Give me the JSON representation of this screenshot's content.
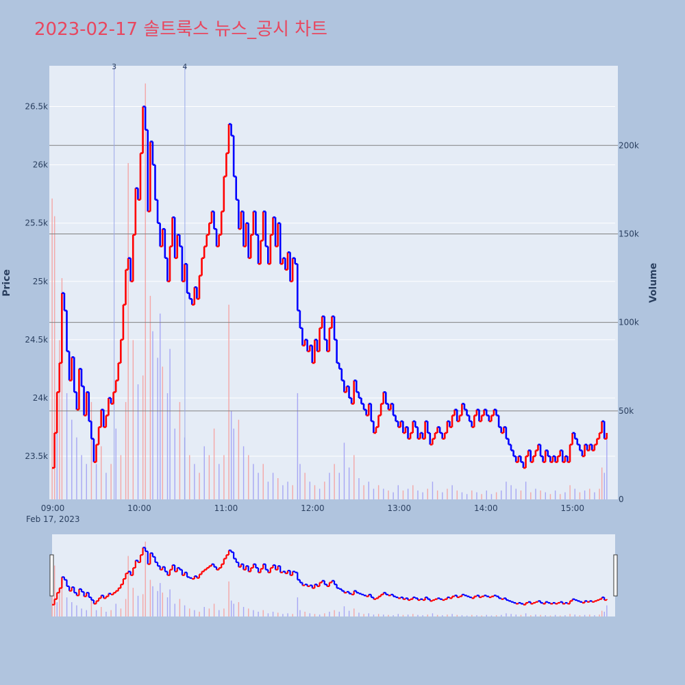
{
  "title": "2023-02-17 솔트룩스 뉴스_공시 차트",
  "colors": {
    "background": "#b0c4de",
    "plot_bg": "#e5ecf6",
    "title": "#e8475f",
    "up": "#ff0000",
    "down": "#0000ff",
    "up_volume": "#f4a6a6",
    "down_volume": "#a6a6f4",
    "grid": "#ffffff",
    "hline": "#808080"
  },
  "chart_data": {
    "type": "candlestick",
    "title": "2023-02-17 솔트룩스 뉴스_공시 차트",
    "xlabel": "",
    "ylabel": "Price",
    "y2label": "Volume",
    "date_label": "Feb 17, 2023",
    "x_ticks": [
      "09:00",
      "10:00",
      "11:00",
      "12:00",
      "13:00",
      "14:00",
      "15:00"
    ],
    "x_range_minutes": [
      0,
      390
    ],
    "y_ticks": [
      "23.5k",
      "24k",
      "24.5k",
      "25k",
      "25.5k",
      "26k",
      "26.5k"
    ],
    "y_tick_values": [
      23500,
      24000,
      24500,
      25000,
      25500,
      26000,
      26500
    ],
    "ylim": [
      23130,
      26850
    ],
    "y2_ticks": [
      "0",
      "50k",
      "100k",
      "150k",
      "200k"
    ],
    "y2_tick_values": [
      0,
      50000,
      100000,
      150000,
      200000
    ],
    "y2lim": [
      0,
      245000
    ],
    "horizontal_lines_volume": [
      50000,
      100000,
      150000,
      200000
    ],
    "news_markers": [
      {
        "label": "3",
        "time_min": 43
      },
      {
        "label": "4",
        "time_min": 92
      }
    ],
    "price_path": [
      [
        0,
        23400
      ],
      [
        1,
        23700
      ],
      [
        2,
        24050
      ],
      [
        3,
        24300
      ],
      [
        4,
        24900
      ],
      [
        5,
        24750
      ],
      [
        6,
        24400
      ],
      [
        7,
        24150
      ],
      [
        8,
        24350
      ],
      [
        9,
        24050
      ],
      [
        10,
        23900
      ],
      [
        11,
        24250
      ],
      [
        12,
        24100
      ],
      [
        13,
        23850
      ],
      [
        14,
        24050
      ],
      [
        15,
        23800
      ],
      [
        16,
        23650
      ],
      [
        17,
        23450
      ],
      [
        18,
        23600
      ],
      [
        19,
        23750
      ],
      [
        20,
        23900
      ],
      [
        21,
        23750
      ],
      [
        22,
        23850
      ],
      [
        23,
        24000
      ],
      [
        24,
        23950
      ],
      [
        25,
        24050
      ],
      [
        26,
        24150
      ],
      [
        27,
        24300
      ],
      [
        28,
        24500
      ],
      [
        29,
        24800
      ],
      [
        30,
        25100
      ],
      [
        31,
        25200
      ],
      [
        32,
        25000
      ],
      [
        33,
        25400
      ],
      [
        34,
        25800
      ],
      [
        35,
        25700
      ],
      [
        36,
        26100
      ],
      [
        37,
        26500
      ],
      [
        38,
        26300
      ],
      [
        39,
        25600
      ],
      [
        40,
        26200
      ],
      [
        41,
        26000
      ],
      [
        42,
        25700
      ],
      [
        43,
        25500
      ],
      [
        44,
        25300
      ],
      [
        45,
        25450
      ],
      [
        46,
        25200
      ],
      [
        47,
        25000
      ],
      [
        48,
        25300
      ],
      [
        49,
        25550
      ],
      [
        50,
        25200
      ],
      [
        51,
        25400
      ],
      [
        52,
        25300
      ],
      [
        53,
        25000
      ],
      [
        54,
        25150
      ],
      [
        55,
        24900
      ],
      [
        56,
        24850
      ],
      [
        57,
        24800
      ],
      [
        58,
        24950
      ],
      [
        59,
        24850
      ],
      [
        60,
        25050
      ],
      [
        61,
        25200
      ],
      [
        62,
        25300
      ],
      [
        63,
        25400
      ],
      [
        64,
        25500
      ],
      [
        65,
        25600
      ],
      [
        66,
        25450
      ],
      [
        67,
        25300
      ],
      [
        68,
        25400
      ],
      [
        69,
        25600
      ],
      [
        70,
        25900
      ],
      [
        71,
        26100
      ],
      [
        72,
        26350
      ],
      [
        73,
        26250
      ],
      [
        74,
        25900
      ],
      [
        75,
        25700
      ],
      [
        76,
        25450
      ],
      [
        77,
        25600
      ],
      [
        78,
        25300
      ],
      [
        79,
        25500
      ],
      [
        80,
        25200
      ],
      [
        81,
        25400
      ],
      [
        82,
        25600
      ],
      [
        83,
        25400
      ],
      [
        84,
        25150
      ],
      [
        85,
        25350
      ],
      [
        86,
        25600
      ],
      [
        87,
        25300
      ],
      [
        88,
        25150
      ],
      [
        89,
        25400
      ],
      [
        90,
        25550
      ],
      [
        91,
        25300
      ],
      [
        92,
        25500
      ],
      [
        93,
        25150
      ],
      [
        94,
        25200
      ],
      [
        95,
        25100
      ],
      [
        96,
        25250
      ],
      [
        97,
        25000
      ],
      [
        98,
        25200
      ],
      [
        99,
        25150
      ],
      [
        100,
        24750
      ],
      [
        101,
        24600
      ],
      [
        102,
        24450
      ],
      [
        103,
        24500
      ],
      [
        104,
        24400
      ],
      [
        105,
        24450
      ],
      [
        106,
        24300
      ],
      [
        107,
        24500
      ],
      [
        108,
        24400
      ],
      [
        109,
        24600
      ],
      [
        110,
        24700
      ],
      [
        111,
        24500
      ],
      [
        112,
        24400
      ],
      [
        113,
        24600
      ],
      [
        114,
        24700
      ],
      [
        115,
        24500
      ],
      [
        116,
        24300
      ],
      [
        117,
        24250
      ],
      [
        118,
        24150
      ],
      [
        119,
        24050
      ],
      [
        120,
        24100
      ],
      [
        121,
        24000
      ],
      [
        122,
        23950
      ],
      [
        123,
        24150
      ],
      [
        124,
        24050
      ],
      [
        125,
        24000
      ],
      [
        126,
        23950
      ],
      [
        127,
        23900
      ],
      [
        128,
        23850
      ],
      [
        129,
        23950
      ],
      [
        130,
        23800
      ],
      [
        131,
        23700
      ],
      [
        132,
        23750
      ],
      [
        133,
        23850
      ],
      [
        134,
        23950
      ],
      [
        135,
        24050
      ],
      [
        136,
        23950
      ],
      [
        137,
        23900
      ],
      [
        138,
        23950
      ],
      [
        139,
        23850
      ],
      [
        140,
        23800
      ],
      [
        141,
        23750
      ],
      [
        142,
        23800
      ],
      [
        143,
        23700
      ],
      [
        144,
        23750
      ],
      [
        145,
        23650
      ],
      [
        146,
        23700
      ],
      [
        147,
        23800
      ],
      [
        148,
        23750
      ],
      [
        149,
        23650
      ],
      [
        150,
        23700
      ],
      [
        151,
        23650
      ],
      [
        152,
        23800
      ],
      [
        153,
        23700
      ],
      [
        154,
        23600
      ],
      [
        155,
        23650
      ],
      [
        156,
        23700
      ],
      [
        157,
        23750
      ],
      [
        158,
        23700
      ],
      [
        159,
        23650
      ],
      [
        160,
        23700
      ],
      [
        161,
        23800
      ],
      [
        162,
        23750
      ],
      [
        163,
        23850
      ],
      [
        164,
        23900
      ],
      [
        165,
        23800
      ],
      [
        166,
        23850
      ],
      [
        167,
        23950
      ],
      [
        168,
        23900
      ],
      [
        169,
        23850
      ],
      [
        170,
        23800
      ],
      [
        171,
        23750
      ],
      [
        172,
        23850
      ],
      [
        173,
        23900
      ],
      [
        174,
        23800
      ],
      [
        175,
        23850
      ],
      [
        176,
        23900
      ],
      [
        177,
        23850
      ],
      [
        178,
        23800
      ],
      [
        179,
        23850
      ],
      [
        180,
        23900
      ],
      [
        181,
        23850
      ],
      [
        182,
        23750
      ],
      [
        183,
        23700
      ],
      [
        184,
        23750
      ],
      [
        185,
        23650
      ],
      [
        186,
        23600
      ],
      [
        187,
        23550
      ],
      [
        188,
        23500
      ],
      [
        189,
        23450
      ],
      [
        190,
        23500
      ],
      [
        191,
        23450
      ],
      [
        192,
        23400
      ],
      [
        193,
        23500
      ],
      [
        194,
        23550
      ],
      [
        195,
        23450
      ],
      [
        196,
        23500
      ],
      [
        197,
        23550
      ],
      [
        198,
        23600
      ],
      [
        199,
        23500
      ],
      [
        200,
        23450
      ],
      [
        201,
        23550
      ],
      [
        202,
        23500
      ],
      [
        203,
        23450
      ],
      [
        204,
        23500
      ],
      [
        205,
        23450
      ],
      [
        206,
        23500
      ],
      [
        207,
        23550
      ],
      [
        208,
        23450
      ],
      [
        209,
        23500
      ],
      [
        210,
        23450
      ],
      [
        211,
        23600
      ],
      [
        212,
        23700
      ],
      [
        213,
        23650
      ],
      [
        214,
        23600
      ],
      [
        215,
        23550
      ],
      [
        216,
        23500
      ],
      [
        217,
        23600
      ],
      [
        218,
        23550
      ],
      [
        219,
        23600
      ],
      [
        220,
        23550
      ],
      [
        221,
        23600
      ],
      [
        222,
        23650
      ],
      [
        223,
        23700
      ],
      [
        224,
        23800
      ],
      [
        225,
        23650
      ],
      [
        226,
        23700
      ]
    ],
    "price_time_scale": 1.7,
    "volume_bars": [
      [
        0,
        170000,
        "up"
      ],
      [
        1,
        160000,
        "up"
      ],
      [
        2,
        45000,
        "down"
      ],
      [
        3,
        90000,
        "up"
      ],
      [
        4,
        125000,
        "up"
      ],
      [
        6,
        60000,
        "down"
      ],
      [
        8,
        45000,
        "down"
      ],
      [
        10,
        35000,
        "down"
      ],
      [
        12,
        25000,
        "down"
      ],
      [
        14,
        20000,
        "down"
      ],
      [
        16,
        55000,
        "up"
      ],
      [
        18,
        20000,
        "down"
      ],
      [
        20,
        30000,
        "up"
      ],
      [
        22,
        15000,
        "down"
      ],
      [
        24,
        20000,
        "up"
      ],
      [
        26,
        40000,
        "down"
      ],
      [
        28,
        25000,
        "up"
      ],
      [
        30,
        55000,
        "up"
      ],
      [
        31,
        190000,
        "up"
      ],
      [
        33,
        90000,
        "up"
      ],
      [
        35,
        65000,
        "down"
      ],
      [
        37,
        70000,
        "up"
      ],
      [
        38,
        235000,
        "up"
      ],
      [
        40,
        115000,
        "up"
      ],
      [
        41,
        95000,
        "down"
      ],
      [
        43,
        80000,
        "down"
      ],
      [
        44,
        105000,
        "down"
      ],
      [
        45,
        75000,
        "up"
      ],
      [
        47,
        60000,
        "down"
      ],
      [
        48,
        85000,
        "down"
      ],
      [
        50,
        40000,
        "down"
      ],
      [
        52,
        55000,
        "up"
      ],
      [
        54,
        35000,
        "down"
      ],
      [
        56,
        25000,
        "up"
      ],
      [
        58,
        20000,
        "down"
      ],
      [
        60,
        15000,
        "up"
      ],
      [
        62,
        30000,
        "down"
      ],
      [
        64,
        25000,
        "up"
      ],
      [
        66,
        40000,
        "up"
      ],
      [
        68,
        20000,
        "down"
      ],
      [
        70,
        25000,
        "up"
      ],
      [
        72,
        110000,
        "up"
      ],
      [
        73,
        50000,
        "down"
      ],
      [
        74,
        40000,
        "down"
      ],
      [
        76,
        45000,
        "up"
      ],
      [
        78,
        30000,
        "down"
      ],
      [
        80,
        25000,
        "up"
      ],
      [
        82,
        20000,
        "down"
      ],
      [
        84,
        15000,
        "down"
      ],
      [
        86,
        20000,
        "up"
      ],
      [
        88,
        10000,
        "down"
      ],
      [
        90,
        15000,
        "down"
      ],
      [
        92,
        12000,
        "up"
      ],
      [
        94,
        8000,
        "down"
      ],
      [
        96,
        10000,
        "down"
      ],
      [
        98,
        8000,
        "up"
      ],
      [
        100,
        60000,
        "down"
      ],
      [
        101,
        20000,
        "down"
      ],
      [
        103,
        15000,
        "up"
      ],
      [
        105,
        10000,
        "down"
      ],
      [
        107,
        8000,
        "up"
      ],
      [
        109,
        6000,
        "down"
      ],
      [
        111,
        10000,
        "up"
      ],
      [
        113,
        15000,
        "down"
      ],
      [
        115,
        20000,
        "up"
      ],
      [
        117,
        15000,
        "down"
      ],
      [
        119,
        32000,
        "down"
      ],
      [
        121,
        18000,
        "down"
      ],
      [
        123,
        25000,
        "up"
      ],
      [
        125,
        12000,
        "down"
      ],
      [
        127,
        8000,
        "up"
      ],
      [
        129,
        10000,
        "down"
      ],
      [
        131,
        6000,
        "down"
      ],
      [
        133,
        8000,
        "up"
      ],
      [
        135,
        6000,
        "down"
      ],
      [
        137,
        5000,
        "up"
      ],
      [
        139,
        4000,
        "down"
      ],
      [
        141,
        8000,
        "down"
      ],
      [
        143,
        5000,
        "up"
      ],
      [
        145,
        6000,
        "down"
      ],
      [
        147,
        8000,
        "up"
      ],
      [
        149,
        5000,
        "down"
      ],
      [
        151,
        4000,
        "down"
      ],
      [
        153,
        6000,
        "up"
      ],
      [
        155,
        10000,
        "down"
      ],
      [
        157,
        5000,
        "up"
      ],
      [
        159,
        4000,
        "down"
      ],
      [
        161,
        6000,
        "up"
      ],
      [
        163,
        8000,
        "down"
      ],
      [
        165,
        5000,
        "up"
      ],
      [
        167,
        4000,
        "down"
      ],
      [
        169,
        3000,
        "down"
      ],
      [
        171,
        5000,
        "up"
      ],
      [
        173,
        4000,
        "down"
      ],
      [
        175,
        3000,
        "up"
      ],
      [
        177,
        5000,
        "down"
      ],
      [
        179,
        3000,
        "down"
      ],
      [
        181,
        4000,
        "up"
      ],
      [
        183,
        5000,
        "down"
      ],
      [
        185,
        10000,
        "down"
      ],
      [
        187,
        8000,
        "down"
      ],
      [
        189,
        6000,
        "down"
      ],
      [
        191,
        5000,
        "up"
      ],
      [
        193,
        10000,
        "down"
      ],
      [
        195,
        4000,
        "up"
      ],
      [
        197,
        6000,
        "down"
      ],
      [
        199,
        5000,
        "up"
      ],
      [
        201,
        4000,
        "down"
      ],
      [
        203,
        3000,
        "up"
      ],
      [
        205,
        5000,
        "down"
      ],
      [
        207,
        3000,
        "up"
      ],
      [
        209,
        4000,
        "down"
      ],
      [
        211,
        8000,
        "up"
      ],
      [
        213,
        6000,
        "down"
      ],
      [
        215,
        4000,
        "up"
      ],
      [
        217,
        5000,
        "down"
      ],
      [
        219,
        6000,
        "up"
      ],
      [
        221,
        4000,
        "down"
      ],
      [
        223,
        6000,
        "up"
      ],
      [
        224,
        18000,
        "up"
      ],
      [
        225,
        15000,
        "down"
      ],
      [
        226,
        35000,
        "down"
      ]
    ],
    "legend": "none",
    "grid": true
  }
}
